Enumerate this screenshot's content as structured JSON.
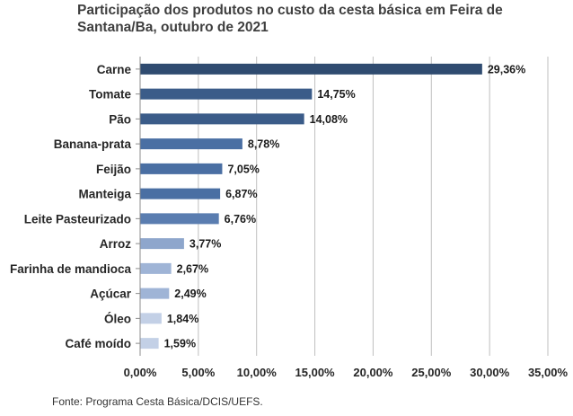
{
  "chart_data": {
    "type": "bar",
    "orientation": "horizontal",
    "title": "Participação dos produtos no custo da cesta básica em Feira de Santana/Ba, outubro de 2021",
    "categories": [
      "Carne",
      "Tomate",
      "Pão",
      "Banana-prata",
      "Feijão",
      "Manteiga",
      "Leite Pasteurizado",
      "Arroz",
      "Farinha de mandioca",
      "Açúcar",
      "Óleo",
      "Café moído"
    ],
    "values": [
      29.36,
      14.75,
      14.08,
      8.78,
      7.05,
      6.87,
      6.76,
      3.77,
      2.67,
      2.49,
      1.84,
      1.59
    ],
    "value_labels": [
      "29,36%",
      "14,75%",
      "14,08%",
      "8,78%",
      "7,05%",
      "6,87%",
      "6,76%",
      "3,77%",
      "2,67%",
      "2,49%",
      "1,84%",
      "1,59%"
    ],
    "xlim": [
      0,
      35
    ],
    "xticks": [
      0,
      5,
      10,
      15,
      20,
      25,
      30,
      35
    ],
    "xtick_labels": [
      "0,00%",
      "5,00%",
      "10,00%",
      "15,00%",
      "20,00%",
      "25,00%",
      "30,00%",
      "35,00%"
    ],
    "xlabel": "",
    "ylabel": "",
    "grid": "vertical",
    "legend": "none",
    "bar_colors": [
      "#2f4b70",
      "#3b5c89",
      "#3b5c89",
      "#4a6fa3",
      "#4a6fa3",
      "#4a6fa3",
      "#5a7db0",
      "#8ea6cc",
      "#9fb4d6",
      "#9fb4d6",
      "#c3d0e6",
      "#c3d0e6"
    ]
  },
  "source": "Fonte: Programa Cesta Básica/DCIS/UEFS."
}
